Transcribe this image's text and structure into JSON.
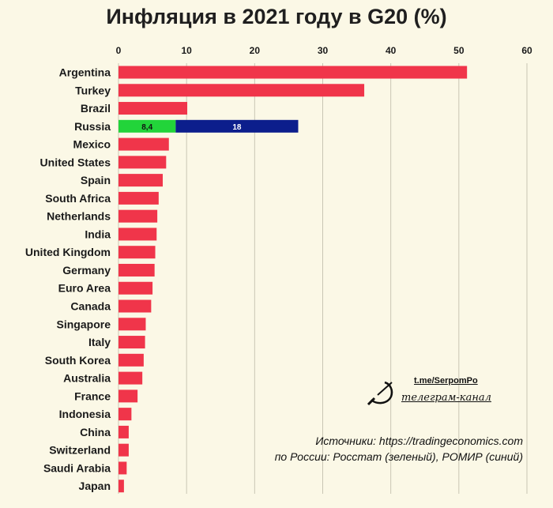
{
  "title": "Инфляция в 2021 году в G20 (%)",
  "chart_data": {
    "type": "bar",
    "orientation": "horizontal",
    "title": "Инфляция в 2021 году в G20 (%)",
    "xlim": [
      0,
      60
    ],
    "ticks": [
      0,
      10,
      20,
      30,
      40,
      50,
      60
    ],
    "grid": true,
    "categories": [
      "Argentina",
      "Turkey",
      "Brazil",
      "Russia",
      "Mexico",
      "United States",
      "Spain",
      "South Africa",
      "Netherlands",
      "India",
      "United Kingdom",
      "Germany",
      "Euro Area",
      "Canada",
      "Singapore",
      "Italy",
      "South Korea",
      "Australia",
      "France",
      "Indonesia",
      "China",
      "Switzerland",
      "Saudi Arabia",
      "Japan"
    ],
    "values": [
      51.2,
      36.1,
      10.1,
      8.4,
      7.4,
      7.0,
      6.5,
      5.9,
      5.7,
      5.6,
      5.4,
      5.3,
      5.0,
      4.8,
      4.0,
      3.9,
      3.7,
      3.5,
      2.8,
      1.9,
      1.5,
      1.5,
      1.2,
      0.8
    ],
    "colors": {
      "default": "#f0354a",
      "rosstat": "#22d43a",
      "romir": "#0c1e8c"
    },
    "russia_segments": [
      {
        "source": "rosstat",
        "value": 8.4,
        "label": "8,4",
        "color": "#22d43a"
      },
      {
        "source": "romir",
        "value": 18,
        "label": "18",
        "color": "#0c1e8c"
      }
    ]
  },
  "telegram": {
    "link": "t.me/SerpomPo",
    "channel": "телеграм-канал"
  },
  "sources": {
    "line1": "Источники: https://tradingeconomics.com",
    "line2": "по России: Росстат (зеленый), РОМИР (синий)"
  }
}
